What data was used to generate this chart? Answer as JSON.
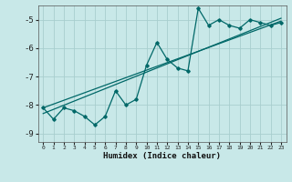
{
  "xlabel": "Humidex (Indice chaleur)",
  "xlim": [
    -0.5,
    23.5
  ],
  "ylim": [
    -9.3,
    -4.5
  ],
  "bg_color": "#c8e8e8",
  "grid_color": "#a8cece",
  "line_color": "#006868",
  "x_data": [
    0,
    1,
    2,
    3,
    4,
    5,
    6,
    7,
    8,
    9,
    10,
    11,
    12,
    13,
    14,
    15,
    16,
    17,
    18,
    19,
    20,
    21,
    22,
    23
  ],
  "y_main": [
    -8.1,
    -8.5,
    -8.1,
    -8.2,
    -8.4,
    -8.7,
    -8.4,
    -7.5,
    -8.0,
    -7.8,
    -6.6,
    -5.8,
    -6.4,
    -6.7,
    -6.8,
    -4.6,
    -5.2,
    -5.0,
    -5.2,
    -5.3,
    -5.0,
    -5.1,
    -5.2,
    -5.1
  ],
  "line1_x": [
    0,
    23
  ],
  "line1_y": [
    -8.1,
    -5.05
  ],
  "line2_x": [
    0,
    23
  ],
  "line2_y": [
    -8.3,
    -4.95
  ],
  "yticks": [
    -9,
    -8,
    -7,
    -6,
    -5
  ],
  "xticks": [
    0,
    1,
    2,
    3,
    4,
    5,
    6,
    7,
    8,
    9,
    10,
    11,
    12,
    13,
    14,
    15,
    16,
    17,
    18,
    19,
    20,
    21,
    22,
    23
  ]
}
